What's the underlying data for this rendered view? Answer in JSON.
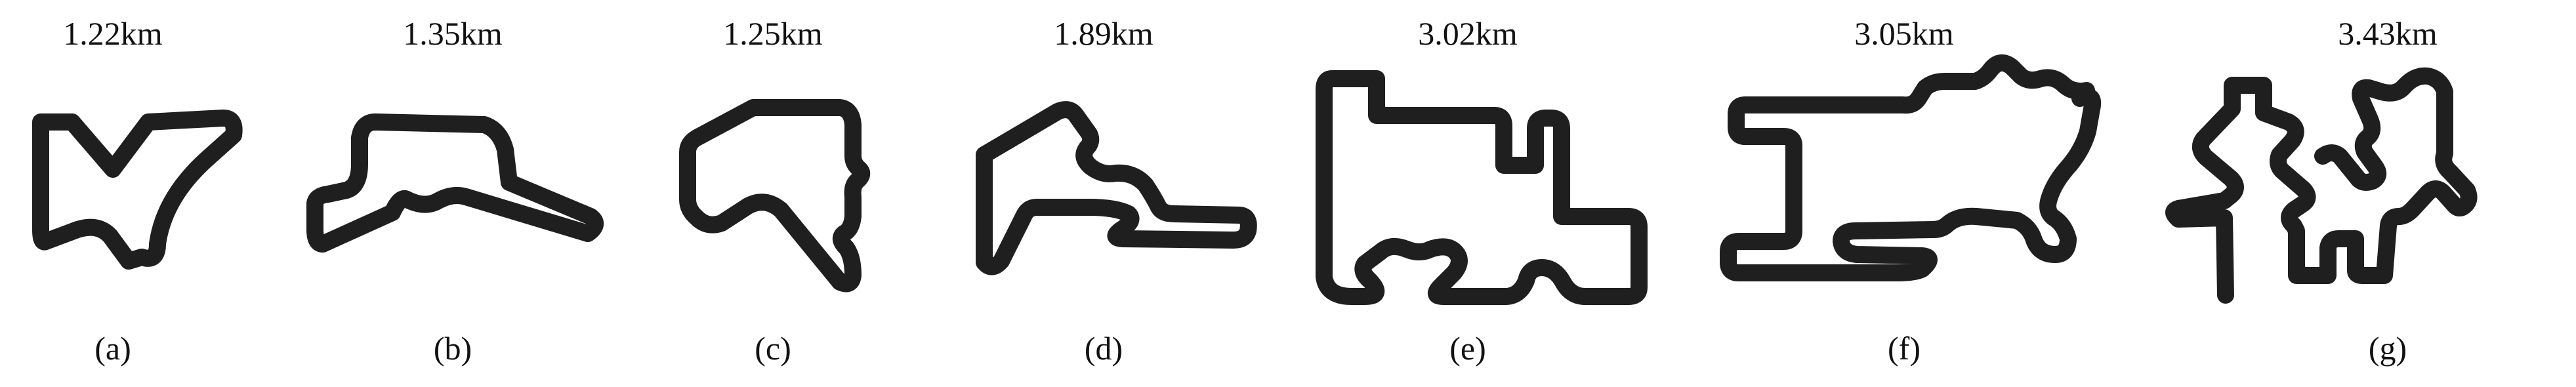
{
  "figure": {
    "panels": [
      {
        "id": "a",
        "length": "1.22km",
        "caption": "(a)"
      },
      {
        "id": "b",
        "length": "1.35km",
        "caption": "(b)"
      },
      {
        "id": "c",
        "length": "1.25km",
        "caption": "(c)"
      },
      {
        "id": "d",
        "length": "1.89km",
        "caption": "(d)"
      },
      {
        "id": "e",
        "length": "3.02km",
        "caption": "(e)"
      },
      {
        "id": "f",
        "length": "3.05km",
        "caption": "(f)"
      },
      {
        "id": "g",
        "length": "3.43km",
        "caption": "(g)"
      }
    ],
    "colors": {
      "track": "#1f1f1f",
      "background": "#ffffff"
    }
  }
}
